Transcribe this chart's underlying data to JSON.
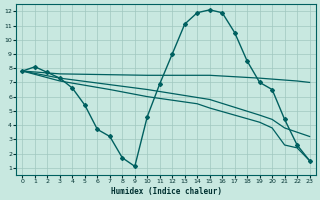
{
  "xlabel": "Humidex (Indice chaleur)",
  "background_color": "#c8e8e0",
  "grid_color": "#a0c8c0",
  "line_color": "#006060",
  "xlim_min": -0.5,
  "xlim_max": 23.5,
  "ylim_min": 0.5,
  "ylim_max": 12.5,
  "xticks": [
    0,
    1,
    2,
    3,
    4,
    5,
    6,
    7,
    8,
    9,
    10,
    11,
    12,
    13,
    14,
    15,
    16,
    17,
    18,
    19,
    20,
    21,
    22,
    23
  ],
  "yticks": [
    1,
    2,
    3,
    4,
    5,
    6,
    7,
    8,
    9,
    10,
    11,
    12
  ],
  "line1_x": [
    0,
    1,
    2,
    3,
    4,
    5,
    6,
    7,
    8,
    9,
    10,
    11,
    12,
    13,
    14,
    15,
    16,
    17,
    18,
    19,
    20,
    21,
    22,
    23
  ],
  "line1_y": [
    7.8,
    8.1,
    7.7,
    7.3,
    6.6,
    5.4,
    3.7,
    3.2,
    1.7,
    1.1,
    4.6,
    6.9,
    9.0,
    11.1,
    11.9,
    12.1,
    11.9,
    10.5,
    8.5,
    7.0,
    6.5,
    4.4,
    2.6,
    1.5
  ],
  "line2_x": [
    0,
    3,
    10,
    15,
    19,
    22,
    23
  ],
  "line2_y": [
    7.8,
    7.6,
    7.5,
    7.5,
    7.3,
    7.1,
    7.0
  ],
  "line3_x": [
    0,
    3,
    10,
    15,
    19,
    20,
    21,
    22,
    23
  ],
  "line3_y": [
    7.8,
    7.3,
    6.5,
    5.8,
    4.7,
    4.4,
    3.8,
    3.5,
    3.2
  ],
  "line4_x": [
    0,
    3,
    7,
    10,
    14,
    15,
    19,
    20,
    21,
    22,
    23
  ],
  "line4_y": [
    7.8,
    7.1,
    6.5,
    6.0,
    5.5,
    5.2,
    4.2,
    3.8,
    2.6,
    2.4,
    1.5
  ]
}
